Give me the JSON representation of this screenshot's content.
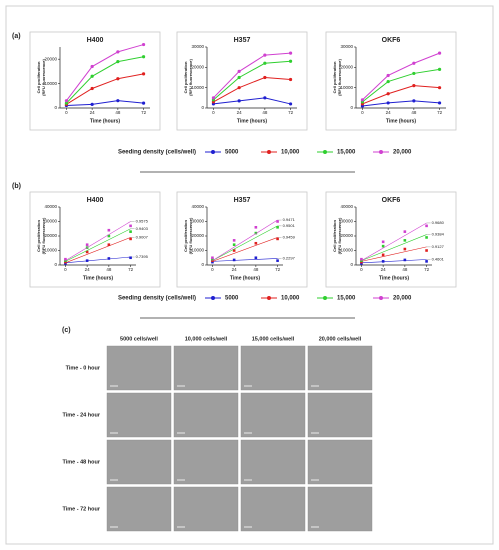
{
  "panels": [
    "(a)",
    "(b)",
    "(c)"
  ],
  "legend_titles": [
    "Seeding density (cells/well)",
    "Seeding density (cells/well)"
  ],
  "micrographs": {
    "columns": [
      "5000 cells/well",
      "10,000 cells/well",
      "15,000 cells/well",
      "20,000 cells/well"
    ],
    "rows": [
      "Time - 0 hour",
      "Time - 24 hour",
      "Time - 48 hour",
      "Time - 72 hour"
    ]
  },
  "chart_data": [
    {
      "type": "line",
      "title": "H400",
      "xlabel": "Time (hours)",
      "ylabel": [
        "Cell proliferation",
        "(RFU fluorescence)"
      ],
      "x": [
        0,
        24,
        48,
        72
      ],
      "xlim": [
        -6,
        78
      ],
      "xticks": [
        0,
        24,
        48,
        72
      ],
      "ylim": [
        0,
        25000
      ],
      "yticks": [
        0,
        10000,
        20000
      ],
      "series": [
        {
          "name": "5000",
          "color": "#1f1fd0",
          "values": [
            1000,
            1500,
            3000,
            2000
          ]
        },
        {
          "name": "10,000",
          "color": "#e0201f",
          "values": [
            1500,
            8000,
            12000,
            14000
          ]
        },
        {
          "name": "15,000",
          "color": "#2fcf2f",
          "values": [
            2000,
            13000,
            19000,
            21000
          ]
        },
        {
          "name": "20,000",
          "color": "#d040d0",
          "values": [
            3000,
            17000,
            23000,
            26000
          ]
        }
      ]
    },
    {
      "type": "line",
      "title": "H357",
      "xlabel": "Time (hours)",
      "ylabel": [
        "Cell proliferation",
        "(RFU fluorescence)"
      ],
      "x": [
        0,
        24,
        48,
        72
      ],
      "xlim": [
        -6,
        78
      ],
      "xticks": [
        0,
        24,
        48,
        72
      ],
      "ylim": [
        0,
        30000
      ],
      "yticks": [
        0,
        10000,
        20000,
        30000
      ],
      "series": [
        {
          "name": "5000",
          "color": "#1f1fd0",
          "values": [
            2000,
            3500,
            5000,
            2000
          ]
        },
        {
          "name": "10,000",
          "color": "#e0201f",
          "values": [
            3000,
            10000,
            15000,
            14000
          ]
        },
        {
          "name": "15,000",
          "color": "#2fcf2f",
          "values": [
            4000,
            15000,
            22000,
            23000
          ]
        },
        {
          "name": "20,000",
          "color": "#d040d0",
          "values": [
            5000,
            18000,
            26000,
            27000
          ]
        }
      ]
    },
    {
      "type": "line",
      "title": "OKF6",
      "xlabel": "Time (hours)",
      "ylabel": [
        "Cell proliferation",
        "(RFU fluorescence)"
      ],
      "x": [
        0,
        24,
        48,
        72
      ],
      "xlim": [
        -6,
        78
      ],
      "xticks": [
        0,
        24,
        48,
        72
      ],
      "ylim": [
        0,
        30000
      ],
      "yticks": [
        0,
        10000,
        20000,
        30000
      ],
      "series": [
        {
          "name": "5000",
          "color": "#1f1fd0",
          "values": [
            1000,
            2500,
            3500,
            2500
          ]
        },
        {
          "name": "10,000",
          "color": "#e0201f",
          "values": [
            2000,
            7000,
            11000,
            10000
          ]
        },
        {
          "name": "15,000",
          "color": "#2fcf2f",
          "values": [
            3000,
            13000,
            17000,
            19000
          ]
        },
        {
          "name": "20,000",
          "color": "#d040d0",
          "values": [
            4000,
            16000,
            22000,
            27000
          ]
        }
      ]
    },
    {
      "type": "scatter",
      "title": "H400",
      "xlabel": "Time (hours)",
      "ylabel": [
        "Cell proliferation",
        "(RFU fluorescence)"
      ],
      "x": [
        0,
        24,
        48,
        72
      ],
      "xlim": [
        -6,
        78
      ],
      "xticks": [
        0,
        24,
        48,
        72
      ],
      "ylim": [
        0,
        40000
      ],
      "yticks": [
        0,
        10000,
        20000,
        30000,
        40000
      ],
      "series": [
        {
          "name": "5000",
          "color": "#1f1fd0",
          "values": [
            1000,
            3000,
            4500,
            5000
          ],
          "fit": [
            1500,
            5500
          ],
          "r2": 0.7395
        },
        {
          "name": "10,000",
          "color": "#e0201f",
          "values": [
            2000,
            9000,
            14000,
            18000
          ],
          "fit": [
            1500,
            19000
          ],
          "r2": 0.9007
        },
        {
          "name": "15,000",
          "color": "#2fcf2f",
          "values": [
            3000,
            12000,
            20000,
            23000
          ],
          "fit": [
            2500,
            25000
          ],
          "r2": 0.9403
        },
        {
          "name": "20,000",
          "color": "#d040d0",
          "values": [
            4000,
            14000,
            24000,
            27000
          ],
          "fit": [
            3000,
            30000
          ],
          "r2": 0.9575
        }
      ]
    },
    {
      "type": "scatter",
      "title": "H357",
      "xlabel": "Time (hours)",
      "ylabel": [
        "Cell proliferation",
        "(RFU fluorescence)"
      ],
      "x": [
        0,
        24,
        48,
        72
      ],
      "xlim": [
        -6,
        78
      ],
      "xticks": [
        0,
        24,
        48,
        72
      ],
      "ylim": [
        0,
        40000
      ],
      "yticks": [
        0,
        10000,
        20000,
        30000,
        40000
      ],
      "series": [
        {
          "name": "5000",
          "color": "#1f1fd0",
          "values": [
            2000,
            3500,
            5000,
            3000
          ],
          "fit": [
            2500,
            4500
          ],
          "r2": 0.2297
        },
        {
          "name": "10,000",
          "color": "#e0201f",
          "values": [
            3000,
            10000,
            15000,
            18000
          ],
          "fit": [
            2500,
            19000
          ],
          "r2": 0.9459
        },
        {
          "name": "15,000",
          "color": "#2fcf2f",
          "values": [
            4000,
            14000,
            22000,
            26000
          ],
          "fit": [
            3000,
            27000
          ],
          "r2": 0.9501
        },
        {
          "name": "20,000",
          "color": "#d040d0",
          "values": [
            5000,
            17000,
            26000,
            30000
          ],
          "fit": [
            3000,
            31000
          ],
          "r2": 0.9471
        }
      ]
    },
    {
      "type": "scatter",
      "title": "OKF6",
      "xlabel": "Time (hours)",
      "ylabel": [
        "Cell proliferation",
        "(RFU fluorescence)"
      ],
      "x": [
        0,
        24,
        48,
        72
      ],
      "xlim": [
        -6,
        78
      ],
      "xticks": [
        0,
        24,
        48,
        72
      ],
      "ylim": [
        0,
        40000
      ],
      "yticks": [
        0,
        10000,
        20000,
        30000,
        40000
      ],
      "series": [
        {
          "name": "5000",
          "color": "#1f1fd0",
          "values": [
            1000,
            2500,
            3500,
            2500
          ],
          "fit": [
            1500,
            3800
          ],
          "r2": 0.4601
        },
        {
          "name": "10,000",
          "color": "#e0201f",
          "values": [
            2000,
            7000,
            11000,
            10000
          ],
          "fit": [
            2500,
            12500
          ],
          "r2": 0.9127
        },
        {
          "name": "15,000",
          "color": "#2fcf2f",
          "values": [
            3000,
            13000,
            17000,
            19000
          ],
          "fit": [
            3000,
            21000
          ],
          "r2": 0.9384
        },
        {
          "name": "20,000",
          "color": "#d040d0",
          "values": [
            4000,
            16000,
            23000,
            27000
          ],
          "fit": [
            3000,
            29000
          ],
          "r2": 0.968,
          "r2_label": "0.9680"
        }
      ]
    }
  ]
}
